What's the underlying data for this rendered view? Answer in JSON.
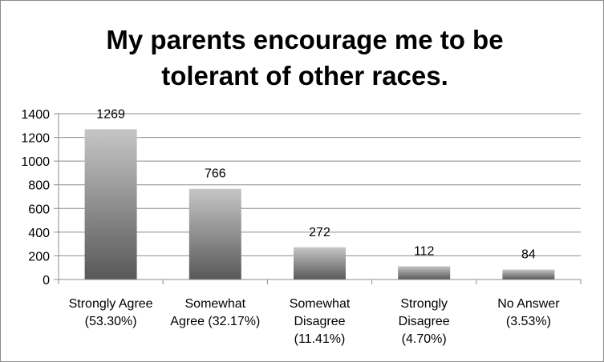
{
  "chart_data": {
    "type": "bar",
    "title_lines": [
      "My parents encourage me to be",
      "tolerant of other races."
    ],
    "categories": [
      [
        "Strongly Agree",
        "(53.30%)"
      ],
      [
        "Somewhat",
        "Agree (32.17%)"
      ],
      [
        "Somewhat",
        "Disagree",
        "(11.41%)"
      ],
      [
        "Strongly",
        "Disagree",
        "(4.70%)"
      ],
      [
        "No Answer",
        "(3.53%)"
      ]
    ],
    "values": [
      1269,
      766,
      272,
      112,
      84
    ],
    "data_labels": [
      "1269",
      "766",
      "272",
      "112",
      "84"
    ],
    "ylim": [
      0,
      1400
    ],
    "yticks": [
      0,
      200,
      400,
      600,
      800,
      1000,
      1200,
      1400
    ],
    "ytick_labels": [
      "0",
      "200",
      "400",
      "600",
      "800",
      "1000",
      "1200",
      "1400"
    ],
    "grid": true,
    "legend": "none",
    "colors": {
      "bar_top": "#c6c6c6",
      "bar_bottom": "#585858",
      "grid": "#8e8e8e",
      "axis": "#8e8e8e"
    }
  }
}
